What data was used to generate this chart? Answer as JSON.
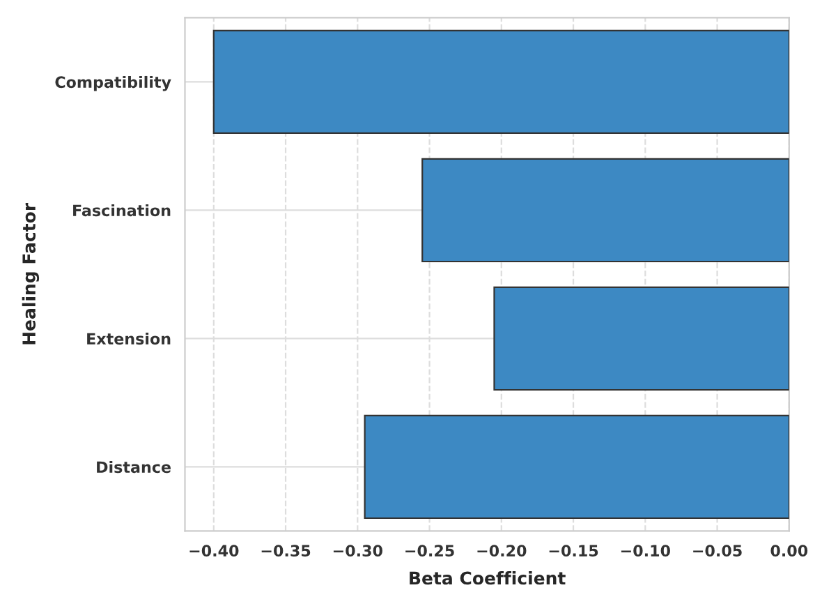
{
  "chart_data": {
    "type": "bar",
    "orientation": "horizontal",
    "categories": [
      "Compatibility",
      "Fascination",
      "Extension",
      "Distance"
    ],
    "values": [
      -0.4,
      -0.255,
      -0.205,
      -0.295
    ],
    "color": "#3d89c3",
    "xlabel": "Beta Coefficient",
    "ylabel": "Healing Factor",
    "xlim": [
      -0.42,
      0.0
    ],
    "xticks": [
      {
        "value": -0.4,
        "label": "−0.40"
      },
      {
        "value": -0.35,
        "label": "−0.35"
      },
      {
        "value": -0.3,
        "label": "−0.30"
      },
      {
        "value": -0.25,
        "label": "−0.25"
      },
      {
        "value": -0.2,
        "label": "−0.20"
      },
      {
        "value": -0.15,
        "label": "−0.15"
      },
      {
        "value": -0.1,
        "label": "−0.10"
      },
      {
        "value": -0.05,
        "label": "−0.05"
      },
      {
        "value": 0.0,
        "label": "0.00"
      }
    ],
    "grid": true
  }
}
